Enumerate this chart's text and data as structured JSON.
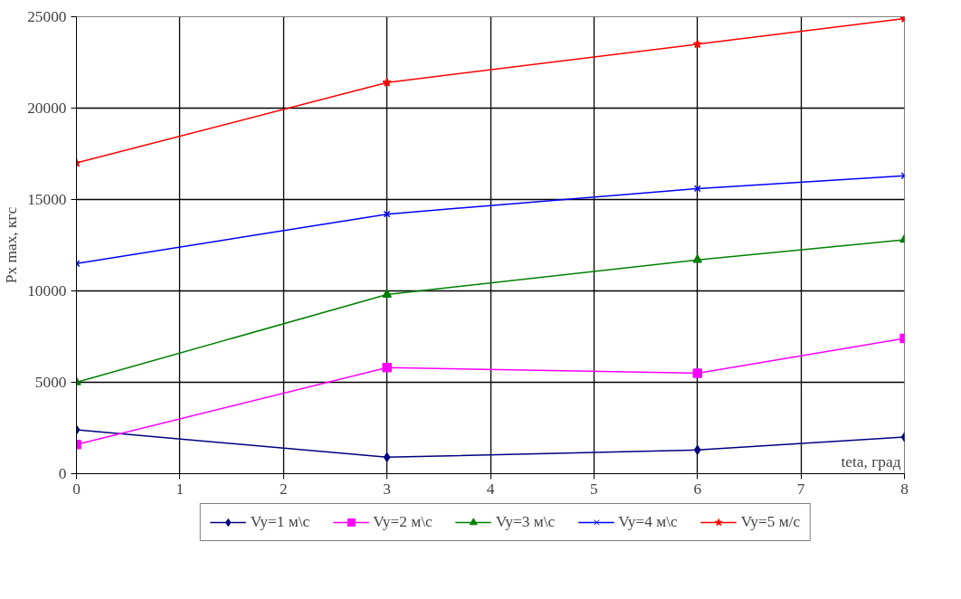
{
  "chart_data": {
    "type": "line",
    "xlabel": "teta, град",
    "ylabel": "Px max, кгс",
    "x": [
      0,
      3,
      6,
      8
    ],
    "series": [
      {
        "name": "Vy=1 м\\с",
        "color": "#000080",
        "marker": "diamond",
        "values": [
          2400,
          900,
          1300,
          2000
        ]
      },
      {
        "name": "Vy=2 м\\с",
        "color": "#ff00ff",
        "marker": "square",
        "values": [
          1600,
          5800,
          5500,
          7400
        ]
      },
      {
        "name": "Vy=3 м\\с",
        "color": "#008000",
        "marker": "triangle",
        "values": [
          5000,
          9800,
          11700,
          12800
        ]
      },
      {
        "name": "Vy=4 м\\с",
        "color": "#0000ff",
        "marker": "cross",
        "values": [
          11500,
          14200,
          15600,
          16300
        ]
      },
      {
        "name": "Vy=5 м/с",
        "color": "#ff0000",
        "marker": "star",
        "values": [
          17000,
          21400,
          23500,
          24900
        ]
      }
    ],
    "xlim": [
      0,
      8
    ],
    "xticks": [
      0,
      1,
      2,
      3,
      4,
      5,
      6,
      7,
      8
    ],
    "ylim": [
      0,
      25000
    ],
    "yticks": [
      0,
      5000,
      10000,
      15000,
      20000,
      25000
    ],
    "grid": true,
    "legend": "bottom",
    "line_style": "solid"
  }
}
